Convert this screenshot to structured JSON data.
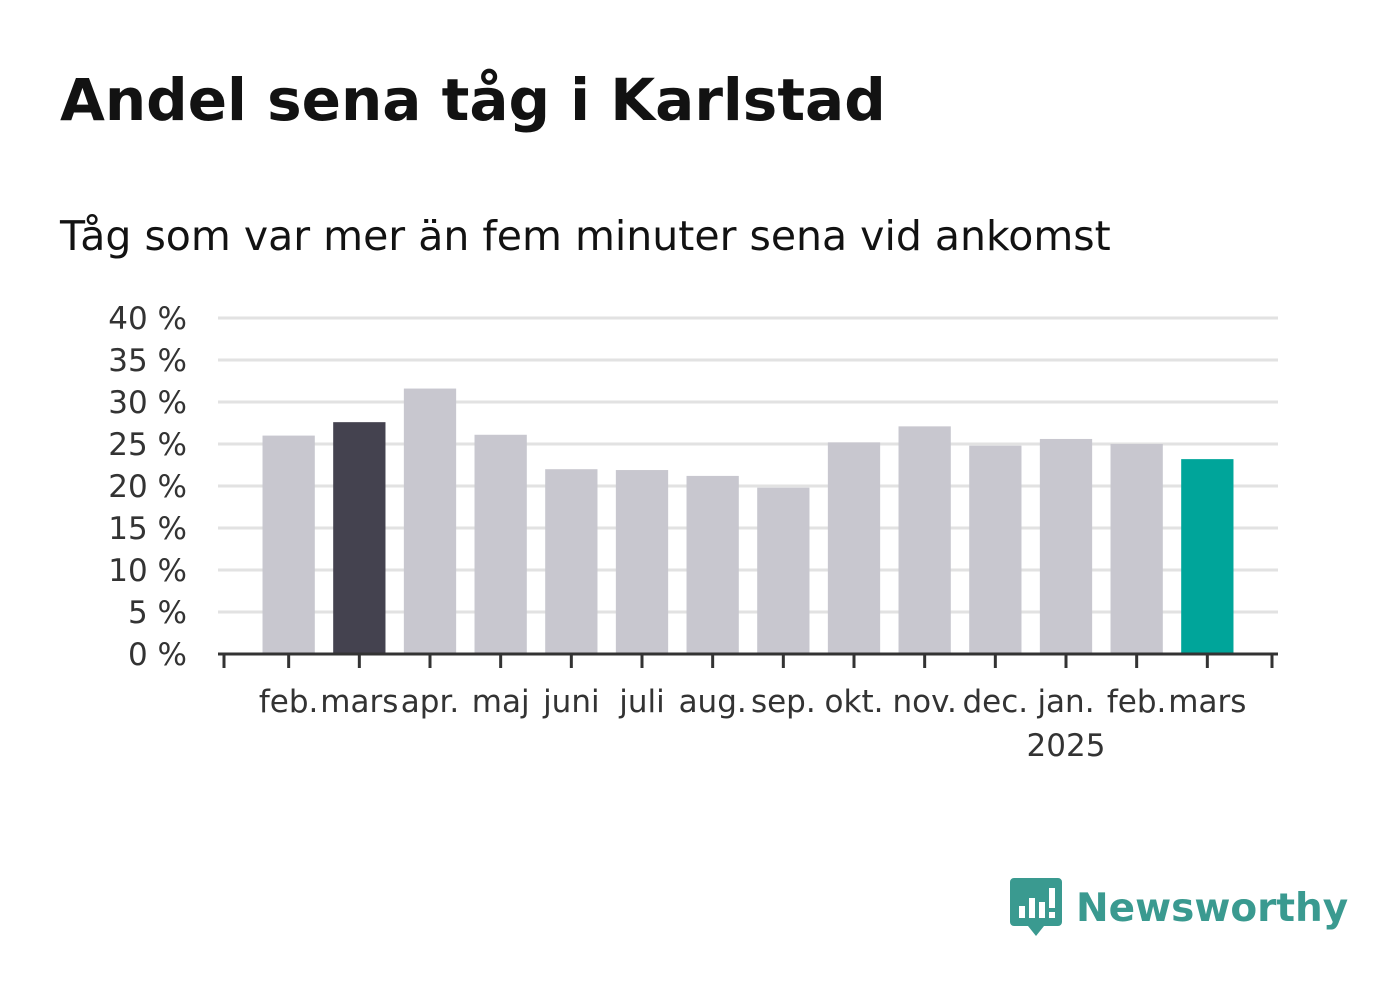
{
  "title": "Andel sena tåg i Karlstad",
  "subtitle": "Tåg som var mer än fem minuter sena vid ankomst",
  "chart_data": {
    "type": "bar",
    "categories": [
      "feb.",
      "mars",
      "apr.",
      "maj",
      "juni",
      "juli",
      "aug.",
      "sep.",
      "okt.",
      "nov.",
      "dec.",
      "jan.",
      "feb.",
      "mars"
    ],
    "secondary_labels": [
      "",
      "",
      "",
      "",
      "",
      "",
      "",
      "",
      "",
      "",
      "",
      "2025",
      "",
      ""
    ],
    "values": [
      26.0,
      27.6,
      31.6,
      26.1,
      22.0,
      21.9,
      21.2,
      19.8,
      25.2,
      27.1,
      24.8,
      25.6,
      25.0,
      23.2
    ],
    "highlight": [
      null,
      "dark",
      null,
      null,
      null,
      null,
      null,
      null,
      null,
      null,
      null,
      null,
      null,
      "teal"
    ],
    "ylim": [
      0,
      40
    ],
    "yticks": [
      0,
      5,
      10,
      15,
      20,
      25,
      30,
      35,
      40
    ],
    "ytick_labels": [
      "0 %",
      "5 %",
      "10 %",
      "15 %",
      "20 %",
      "25 %",
      "30 %",
      "35 %",
      "40 %"
    ],
    "grid": true,
    "colors": {
      "default": "#c8c7cf",
      "dark": "#44424f",
      "teal": "#00a59a",
      "grid": "#e2e2e2",
      "axis": "#333333"
    }
  },
  "brand": {
    "name": "Newsworthy",
    "icon": "bar-chart-speech-bubble-icon",
    "color": "#3a9a90"
  }
}
